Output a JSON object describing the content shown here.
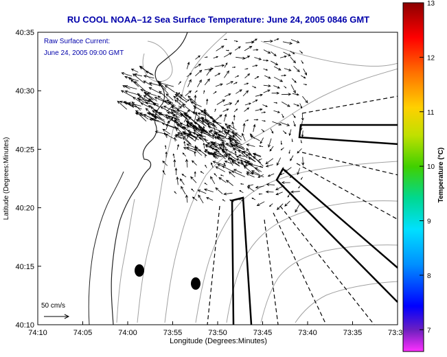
{
  "chart_data": {
    "type": "vector-field-map",
    "title": "RU COOL  NOAA–12  Sea Surface Temperature:  June 24, 2005 0846 GMT",
    "annotation": [
      "Raw Surface Current:",
      "June 24, 2005 09:00 GMT"
    ],
    "xlabel": "Longitude (Degrees:Minutes)",
    "ylabel": "Latitude (Degrees:Minutes)",
    "x_ticks": [
      "74:10",
      "74:05",
      "74:00",
      "73:55",
      "73:50",
      "73:45",
      "73:40",
      "73:35",
      "73:3"
    ],
    "y_ticks": [
      "40:10",
      "40:15",
      "40:20",
      "40:25",
      "40:30",
      "40:35"
    ],
    "xlim": [
      -74.1667,
      -73.5
    ],
    "ylim": [
      40.1667,
      40.5833
    ],
    "scale_label": "50 cm/s",
    "colorbar": {
      "label": "Temperature (°C)",
      "ticks": [
        "7",
        "8",
        "9",
        "10",
        "11",
        "12",
        "13"
      ],
      "range": [
        6.6,
        13
      ]
    },
    "colors": {
      "title": "#0000aa",
      "annotation": "#0000aa",
      "land": "#ffffff",
      "contour": "#999999",
      "vector": "#000000",
      "colormap": [
        "#ff30ff",
        "#7020c0",
        "#0000ff",
        "#0090ff",
        "#00e0ff",
        "#00d890",
        "#40d000",
        "#c0e000",
        "#ffd000",
        "#ff7000",
        "#ff0000",
        "#8b0000"
      ]
    }
  }
}
